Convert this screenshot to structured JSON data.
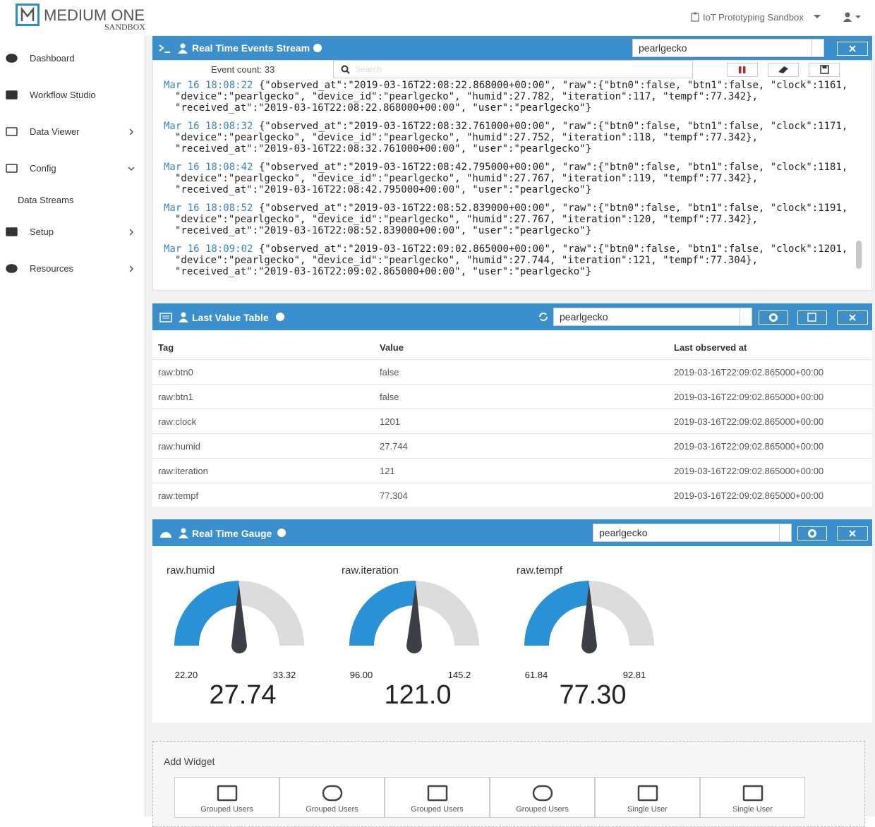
{
  "header": {
    "logo_main": "MEDIUM ONE",
    "logo_sub": "SANDBOX",
    "project": "IoT Prototyping Sandbox"
  },
  "sidebar": {
    "items": [
      "Dashboard",
      "Workflow Studio",
      "Data Viewer",
      "Config",
      "Data Streams",
      "Setup",
      "Resources"
    ]
  },
  "events_widget": {
    "title": "Real Time Events Stream",
    "device": "pearlgecko",
    "event_count": "Event count: 33",
    "search_placeholder": "Search",
    "events": [
      {
        "time": "Mar 16 18:08:22",
        "body": "{\"observed_at\":\"2019-03-16T22:08:22.868000+00:00\", \"raw\":{\"btn0\":false, \"btn1\":false, \"clock\":1161, \"device\":\"pearlgecko\", \"device_id\":\"pearlgecko\", \"humid\":27.782, \"iteration\":117, \"tempf\":77.342}, \"received_at\":\"2019-03-16T22:08:22.868000+00:00\", \"user\":\"pearlgecko\"}"
      },
      {
        "time": "Mar 16 18:08:32",
        "body": "{\"observed_at\":\"2019-03-16T22:08:32.761000+00:00\", \"raw\":{\"btn0\":false, \"btn1\":false, \"clock\":1171, \"device\":\"pearlgecko\", \"device_id\":\"pearlgecko\", \"humid\":27.752, \"iteration\":118, \"tempf\":77.342}, \"received_at\":\"2019-03-16T22:08:32.761000+00:00\", \"user\":\"pearlgecko\"}"
      },
      {
        "time": "Mar 16 18:08:42",
        "body": "{\"observed_at\":\"2019-03-16T22:08:42.795000+00:00\", \"raw\":{\"btn0\":false, \"btn1\":false, \"clock\":1181, \"device\":\"pearlgecko\", \"device_id\":\"pearlgecko\", \"humid\":27.767, \"iteration\":119, \"tempf\":77.342}, \"received_at\":\"2019-03-16T22:08:42.795000+00:00\", \"user\":\"pearlgecko\"}"
      },
      {
        "time": "Mar 16 18:08:52",
        "body": "{\"observed_at\":\"2019-03-16T22:08:52.839000+00:00\", \"raw\":{\"btn0\":false, \"btn1\":false, \"clock\":1191, \"device\":\"pearlgecko\", \"device_id\":\"pearlgecko\", \"humid\":27.767, \"iteration\":120, \"tempf\":77.342}, \"received_at\":\"2019-03-16T22:08:52.839000+00:00\", \"user\":\"pearlgecko\"}"
      },
      {
        "time": "Mar 16 18:09:02",
        "body": "{\"observed_at\":\"2019-03-16T22:09:02.865000+00:00\", \"raw\":{\"btn0\":false, \"btn1\":false, \"clock\":1201, \"device\":\"pearlgecko\", \"device_id\":\"pearlgecko\", \"humid\":27.744, \"iteration\":121, \"tempf\":77.304}, \"received_at\":\"2019-03-16T22:09:02.865000+00:00\", \"user\":\"pearlgecko\"}"
      }
    ]
  },
  "table_widget": {
    "title": "Last Value Table",
    "device": "pearlgecko",
    "headers": [
      "Tag",
      "Value",
      "Last observed at"
    ],
    "rows": [
      [
        "raw:btn0",
        "false",
        "2019-03-16T22:09:02.865000+00:00"
      ],
      [
        "raw:btn1",
        "false",
        "2019-03-16T22:09:02.865000+00:00"
      ],
      [
        "raw:clock",
        1201,
        "2019-03-16T22:09:02.865000+00:00"
      ],
      [
        "raw:humid",
        27.744,
        "2019-03-16T22:09:02.865000+00:00"
      ],
      [
        "raw:iteration",
        121,
        "2019-03-16T22:09:02.865000+00:00"
      ],
      [
        "raw:tempf",
        77.304,
        "2019-03-16T22:09:02.865000+00:00"
      ]
    ]
  },
  "gauge_widget": {
    "title": "Real Time Gauge",
    "device": "pearlgecko",
    "gauges": [
      {
        "label": "raw.humid",
        "min": {
          "value": 22.2,
          "label": "22.20"
        },
        "max": 33.32,
        "value": 27.74
      },
      {
        "label": "raw.iteration",
        "min": {
          "value": 96,
          "label": "96.00"
        },
        "max": 145.2,
        "value": {
          "value": 121,
          "label": "121.0"
        }
      },
      {
        "label": "raw.tempf",
        "min": 61.84,
        "max": 92.81,
        "value": {
          "value": 77.3,
          "label": "77.30"
        }
      }
    ]
  },
  "add_widget": {
    "title": "Add Widget",
    "buttons": [
      "Grouped Users",
      "Grouped Users",
      "Grouped Users",
      "Grouped Users",
      "Single User",
      "Single User"
    ]
  }
}
